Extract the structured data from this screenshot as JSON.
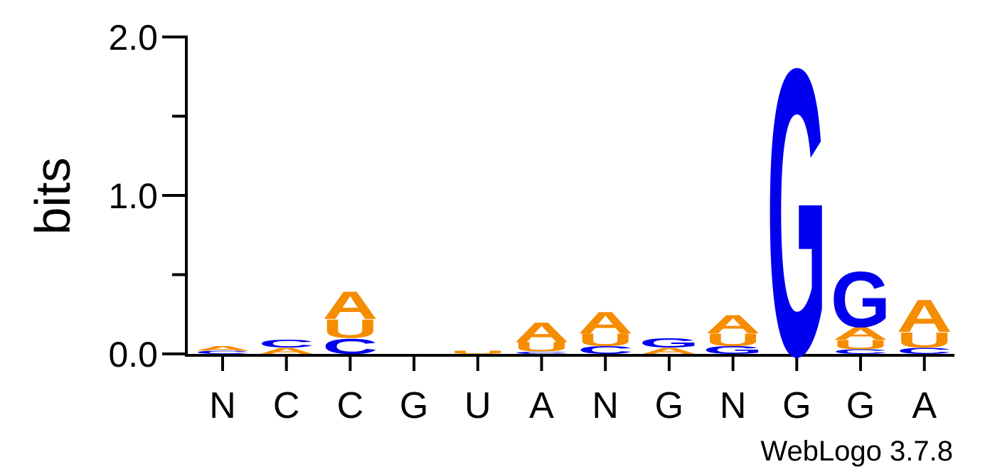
{
  "chart_data": {
    "type": "sequence-logo",
    "ylabel": "bits",
    "ylim": [
      0,
      2
    ],
    "y_ticks": [
      {
        "value": 0,
        "label": "0.0"
      },
      {
        "value": 1,
        "label": "1.0"
      },
      {
        "value": 2,
        "label": "2.0"
      }
    ],
    "colors": {
      "A": "#f68c00",
      "C": "#0000ee",
      "G": "#0000ee",
      "U": "#f68c00"
    },
    "positions": [
      {
        "label": "N",
        "letters": [
          {
            "base": "C",
            "bits": 0.02
          },
          {
            "base": "A",
            "bits": 0.03
          }
        ]
      },
      {
        "label": "C",
        "letters": [
          {
            "base": "A",
            "bits": 0.04
          },
          {
            "base": "C",
            "bits": 0.05
          }
        ]
      },
      {
        "label": "C",
        "letters": [
          {
            "base": "C",
            "bits": 0.1
          },
          {
            "base": "U",
            "bits": 0.12
          },
          {
            "base": "A",
            "bits": 0.18
          }
        ]
      },
      {
        "label": "G",
        "letters": []
      },
      {
        "label": "U",
        "letters": [
          {
            "base": "U",
            "bits": 0.02
          }
        ]
      },
      {
        "label": "A",
        "letters": [
          {
            "base": "C",
            "bits": 0.015
          },
          {
            "base": "U",
            "bits": 0.06
          },
          {
            "base": "A",
            "bits": 0.13
          }
        ]
      },
      {
        "label": "N",
        "letters": [
          {
            "base": "C",
            "bits": 0.05
          },
          {
            "base": "U",
            "bits": 0.08
          },
          {
            "base": "A",
            "bits": 0.14
          }
        ]
      },
      {
        "label": "G",
        "letters": [
          {
            "base": "A",
            "bits": 0.04
          },
          {
            "base": "G",
            "bits": 0.06
          }
        ]
      },
      {
        "label": "N",
        "letters": [
          {
            "base": "G",
            "bits": 0.05
          },
          {
            "base": "U",
            "bits": 0.08
          },
          {
            "base": "A",
            "bits": 0.12
          }
        ]
      },
      {
        "label": "G",
        "letters": [
          {
            "base": "G",
            "bits": 1.86
          }
        ]
      },
      {
        "label": "G",
        "letters": [
          {
            "base": "C",
            "bits": 0.03
          },
          {
            "base": "U",
            "bits": 0.06
          },
          {
            "base": "A",
            "bits": 0.08
          },
          {
            "base": "G",
            "bits": 0.36
          }
        ]
      },
      {
        "label": "A",
        "letters": [
          {
            "base": "C",
            "bits": 0.04
          },
          {
            "base": "U",
            "bits": 0.1
          },
          {
            "base": "A",
            "bits": 0.21
          }
        ]
      }
    ]
  },
  "credit": "WebLogo 3.7.8"
}
